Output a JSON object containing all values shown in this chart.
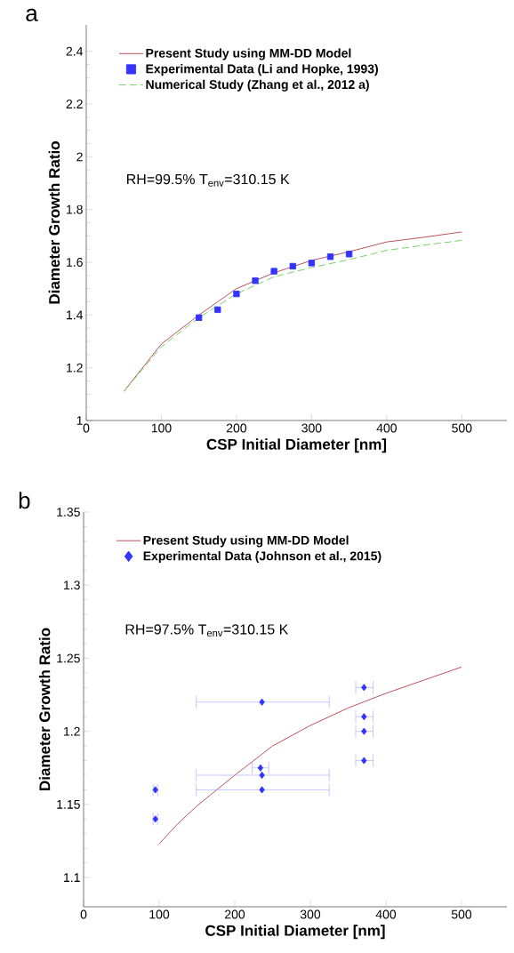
{
  "chart_data": [
    {
      "type": "line",
      "xlabel": "CSP Initial Diameter [nm]",
      "ylabel": "Diameter Growth Ratio",
      "annotations": [
        "a",
        "RH=99.5% T$_{env}$=310.15 K"
      ],
      "xlim": [
        0,
        560
      ],
      "ylim": [
        1,
        2.5
      ],
      "xticks": [
        0,
        100,
        200,
        300,
        400,
        500
      ],
      "yticks": [
        1,
        1.2,
        1.4,
        1.6,
        1.8,
        2,
        2.2,
        2.4
      ],
      "legend": "top",
      "grid": false,
      "series": [
        {
          "name": "Present Study using MM-DD Model",
          "type": "line",
          "color": "#b5404a",
          "line_style": "solid",
          "marker": "none",
          "x": [
            50,
            100,
            150,
            200,
            250,
            300,
            350,
            400,
            450,
            500
          ],
          "values": [
            1.11,
            1.29,
            1.4,
            1.5,
            1.56,
            1.607,
            1.64,
            1.677,
            1.695,
            1.715
          ]
        },
        {
          "name": "Experimental Data (Li and Hopke, 1993)",
          "type": "scatter",
          "color": "#3333ff",
          "marker": "square",
          "x": [
            150,
            175,
            200,
            225,
            250,
            275,
            300,
            325,
            350
          ],
          "values": [
            1.39,
            1.42,
            1.48,
            1.53,
            1.566,
            1.585,
            1.597,
            1.621,
            1.631
          ]
        },
        {
          "name": "Numerical Study (Zhang et al., 2012 a)",
          "type": "line",
          "color": "#66cc55",
          "line_style": "dashed",
          "marker": "none",
          "x": [
            50,
            100,
            150,
            200,
            250,
            300,
            350,
            400,
            450,
            500
          ],
          "values": [
            1.11,
            1.28,
            1.39,
            1.48,
            1.545,
            1.58,
            1.61,
            1.645,
            1.665,
            1.683
          ]
        }
      ]
    },
    {
      "type": "line",
      "xlabel": "CSP Initial Diameter [nm]",
      "ylabel": "Diameter Growth Ratio",
      "annotations": [
        "b",
        "RH=97.5% T$_{env}$=310.15 K"
      ],
      "xlim": [
        0,
        560
      ],
      "ylim": [
        1.08,
        1.35
      ],
      "xticks": [
        0,
        100,
        200,
        300,
        400,
        500
      ],
      "yticks": [
        1.1,
        1.15,
        1.2,
        1.25,
        1.3,
        1.35
      ],
      "legend": "top",
      "grid": false,
      "series": [
        {
          "name": "Present Study using MM-DD Model",
          "type": "line",
          "color": "#b5404a",
          "line_style": "solid",
          "marker": "none",
          "x": [
            100,
            125,
            150,
            200,
            250,
            300,
            350,
            400,
            450,
            500
          ],
          "values": [
            1.123,
            1.137,
            1.149,
            1.17,
            1.19,
            1.204,
            1.216,
            1.226,
            1.235,
            1.244
          ]
        },
        {
          "name": "Experimental Data (Johnson et al., 2015)",
          "type": "scatter",
          "color": "#3333ff",
          "marker": "diamond",
          "x": [
            95,
            95,
            236,
            234,
            236,
            236,
            371,
            371,
            371,
            371
          ],
          "values": [
            1.16,
            1.14,
            1.22,
            1.175,
            1.17,
            1.16,
            1.23,
            1.21,
            1.2,
            1.18
          ],
          "xerrors": [
            [
              92,
              98
            ],
            [
              92,
              98
            ],
            [
              149,
              325
            ],
            [
              223,
              245
            ],
            [
              149,
              325
            ],
            [
              149,
              325
            ],
            [
              360,
              383
            ],
            [
              360,
              383
            ],
            [
              360,
              383
            ],
            [
              360,
              383
            ]
          ]
        }
      ]
    }
  ]
}
